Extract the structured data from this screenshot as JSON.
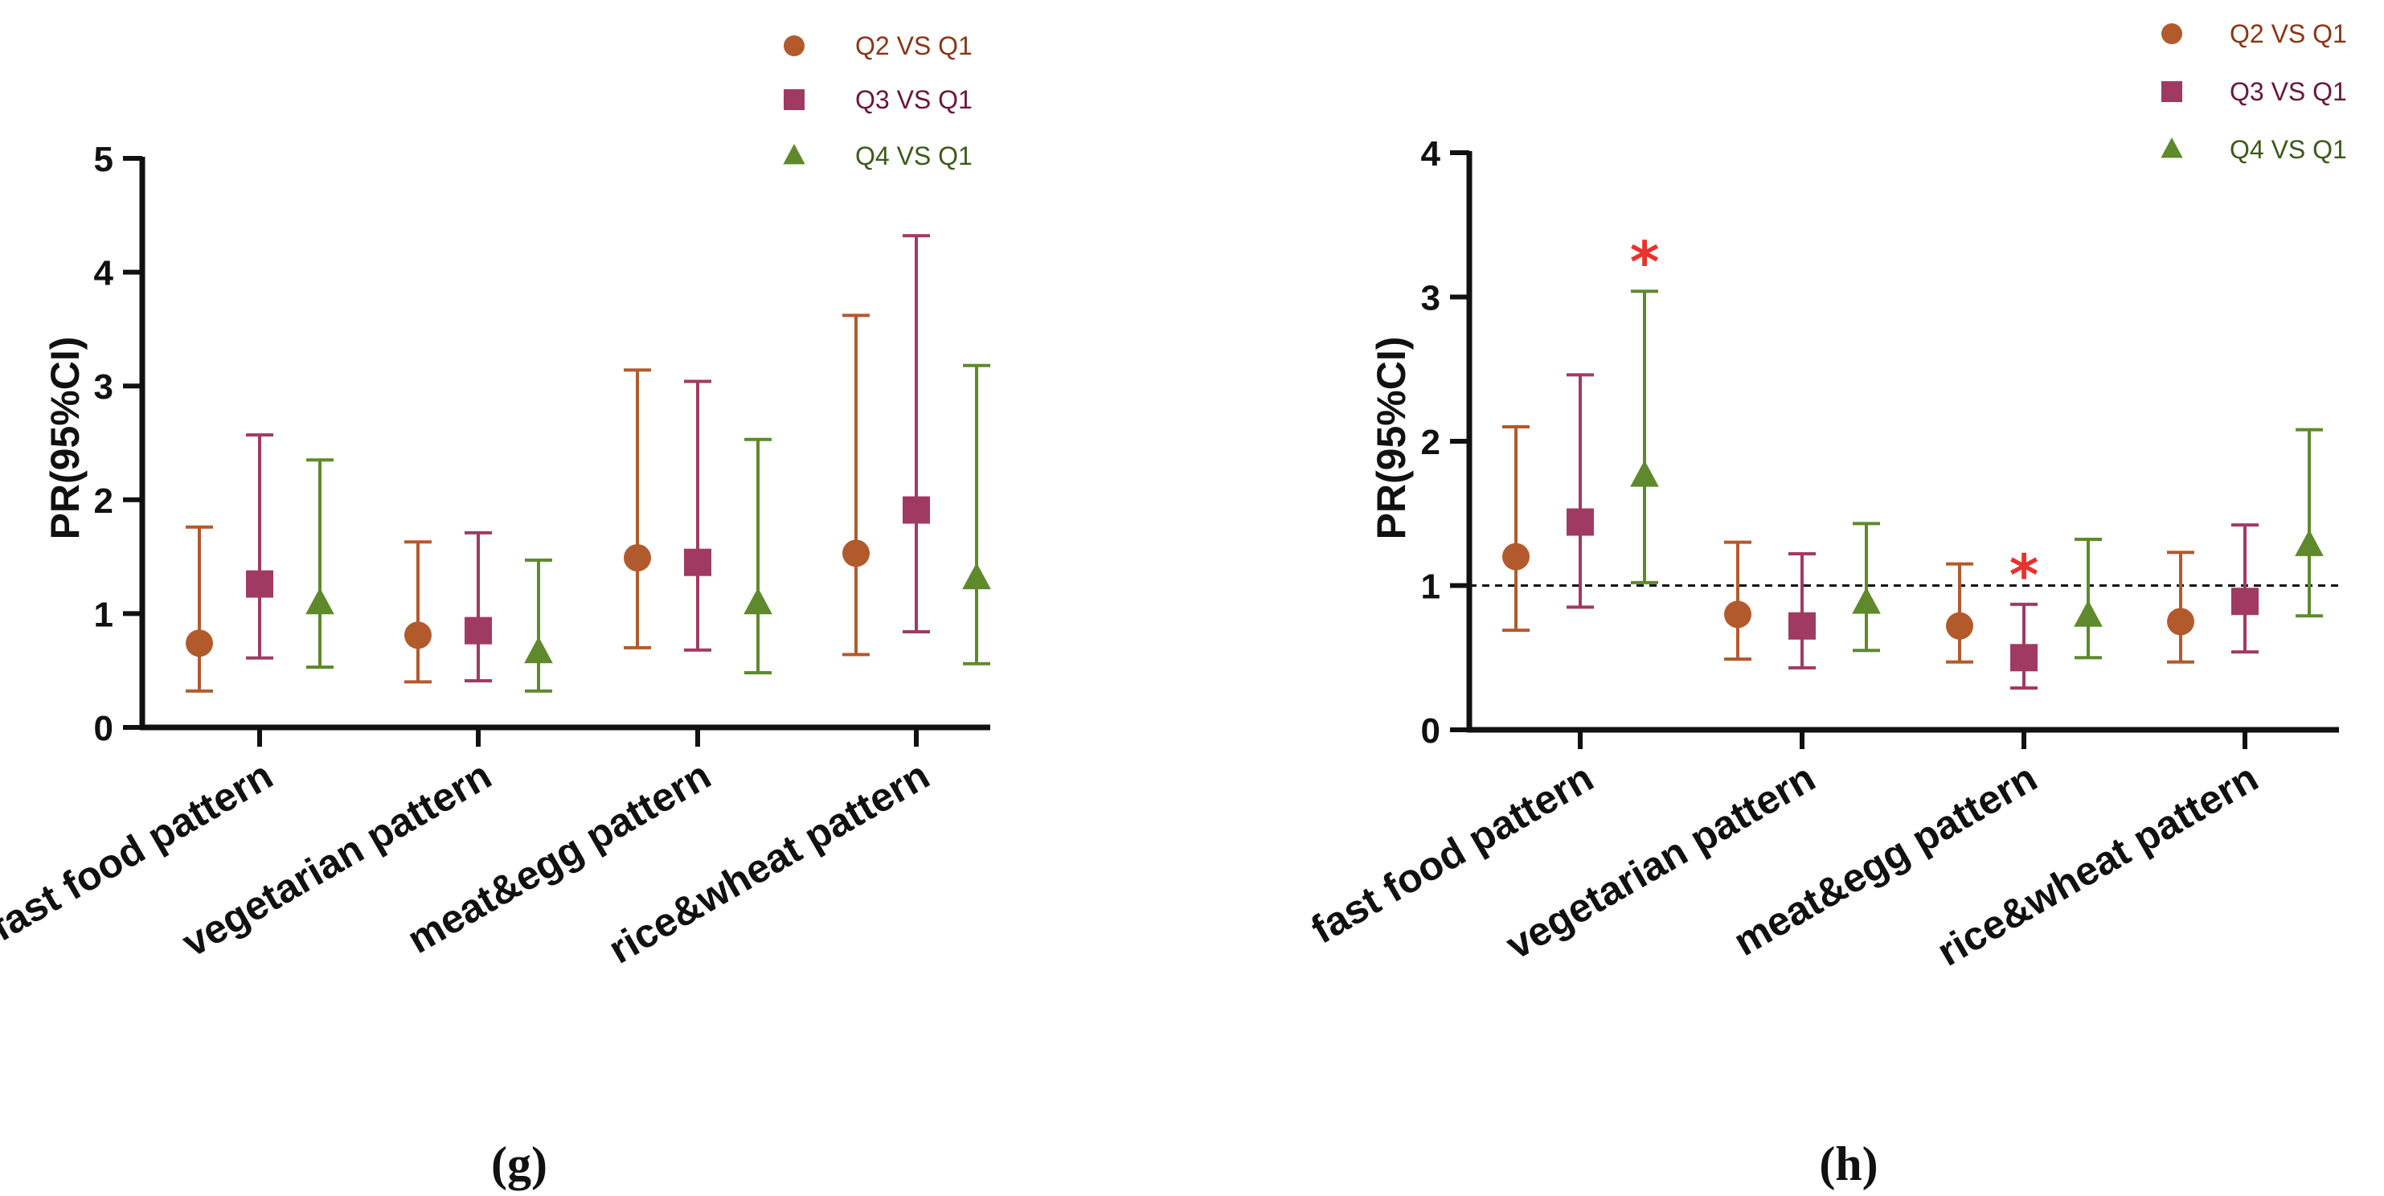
{
  "colors": {
    "Q2": "#b25a2c",
    "Q3": "#a13a63",
    "Q4": "#5e8a2c",
    "Q2_text": "#8a3614",
    "Q3_text": "#6a1738",
    "Q4_text": "#3b5a1a",
    "star": "#e8322e",
    "axis": "#111111"
  },
  "chart_data": [
    {
      "type": "scatter",
      "panel_label": "(g)",
      "ylabel": "PR(95%CI)",
      "xlabel": "",
      "ylim": [
        0,
        5
      ],
      "yticks": [
        0,
        1,
        2,
        3,
        4,
        5
      ],
      "reference_line": 0,
      "legend_placement": "top-right",
      "categories": [
        "fast food pattern",
        "vegetarian pattern",
        "meat&egg pattern",
        "rice&wheat pattern"
      ],
      "series": [
        {
          "name": "Q2 VS Q1",
          "marker": "circle",
          "values": [
            0.74,
            0.81,
            1.49,
            1.53
          ],
          "lower": [
            0.32,
            0.4,
            0.7,
            0.64
          ],
          "upper": [
            1.76,
            1.63,
            3.14,
            3.62
          ]
        },
        {
          "name": "Q3 VS Q1",
          "marker": "square",
          "values": [
            1.26,
            0.85,
            1.45,
            1.91
          ],
          "lower": [
            0.61,
            0.41,
            0.68,
            0.84
          ],
          "upper": [
            2.57,
            1.71,
            3.04,
            4.32
          ]
        },
        {
          "name": "Q4 VS Q1",
          "marker": "triangle",
          "values": [
            1.09,
            0.66,
            1.09,
            1.31
          ],
          "lower": [
            0.53,
            0.32,
            0.48,
            0.56
          ],
          "upper": [
            2.35,
            1.47,
            2.53,
            3.18
          ]
        }
      ],
      "significant": []
    },
    {
      "type": "scatter",
      "panel_label": "(h)",
      "ylabel": "PR(95%CI)",
      "xlabel": "",
      "ylim": [
        0,
        4
      ],
      "yticks": [
        0,
        1,
        2,
        3,
        4
      ],
      "reference_line": 1,
      "legend_placement": "top-right",
      "categories": [
        "fast food pattern",
        "vegetarian pattern",
        "meat&egg pattern",
        "rice&wheat pattern"
      ],
      "series": [
        {
          "name": "Q2 VS Q1",
          "marker": "circle",
          "values": [
            1.2,
            0.8,
            0.72,
            0.75
          ],
          "lower": [
            0.69,
            0.49,
            0.47,
            0.47
          ],
          "upper": [
            2.1,
            1.3,
            1.15,
            1.23
          ]
        },
        {
          "name": "Q3 VS Q1",
          "marker": "square",
          "values": [
            1.44,
            0.72,
            0.5,
            0.89
          ],
          "lower": [
            0.85,
            0.43,
            0.29,
            0.54
          ],
          "upper": [
            2.46,
            1.22,
            0.87,
            1.42
          ]
        },
        {
          "name": "Q4 VS Q1",
          "marker": "triangle",
          "values": [
            1.76,
            0.88,
            0.79,
            1.28
          ],
          "lower": [
            1.02,
            0.55,
            0.5,
            0.79
          ],
          "upper": [
            3.04,
            1.43,
            1.32,
            2.08
          ]
        }
      ],
      "significant": [
        {
          "category": 0,
          "series": 2,
          "mark": "*"
        },
        {
          "category": 2,
          "series": 1,
          "mark": "*"
        }
      ]
    }
  ]
}
